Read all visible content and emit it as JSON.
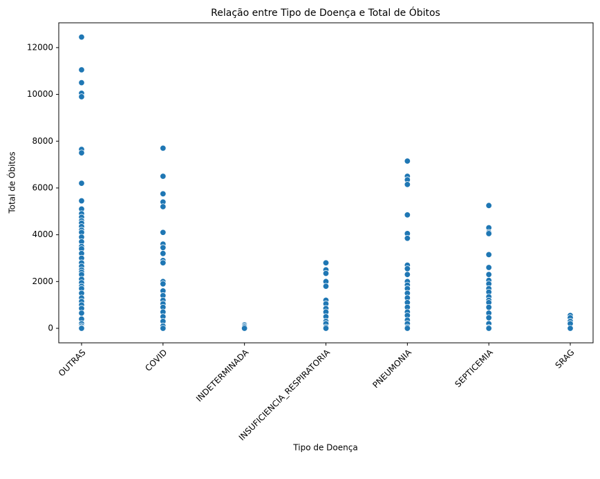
{
  "chart_data": {
    "type": "scatter",
    "title": "Relação entre Tipo de Doença e Total de Óbitos",
    "x_label": "Tipo de Doença",
    "y_label": "Total de Óbitos",
    "color": "#1f77b4",
    "categories": [
      "OUTRAS",
      "COVID",
      "INDETERMINADA",
      "INSUFICIENCIA_RESPIRATORIA",
      "PNEUMONIA",
      "SEPTICEMIA",
      "SRAG"
    ],
    "values": [
      [
        12450,
        11050,
        10500,
        10050,
        9900,
        7650,
        7500,
        6200,
        5450,
        5100,
        4900,
        4750,
        4600,
        4500,
        4350,
        4200,
        4100,
        3900,
        3700,
        3500,
        3400,
        3200,
        3000,
        2800,
        2650,
        2500,
        2400,
        2300,
        2100,
        1950,
        1800,
        1700,
        1500,
        1300,
        1150,
        1000,
        850,
        650,
        400,
        200,
        100,
        30,
        0
      ],
      [
        7700,
        6500,
        5750,
        5400,
        5200,
        4100,
        3600,
        3450,
        3200,
        2900,
        2800,
        2000,
        1900,
        1600,
        1400,
        1200,
        1050,
        900,
        700,
        500,
        300,
        100,
        0
      ],
      [
        150,
        100,
        50,
        0
      ],
      [
        2800,
        2500,
        2350,
        2000,
        1800,
        1200,
        1050,
        850,
        700,
        500,
        300,
        200,
        50,
        0
      ],
      [
        7150,
        6500,
        6350,
        6150,
        4850,
        4050,
        3850,
        2700,
        2550,
        2300,
        2000,
        1850,
        1700,
        1500,
        1300,
        1100,
        900,
        700,
        550,
        350,
        200,
        50,
        0
      ],
      [
        5250,
        4300,
        4100,
        4050,
        3150,
        2600,
        2300,
        2050,
        1900,
        1700,
        1550,
        1350,
        1200,
        1100,
        900,
        650,
        450,
        200,
        30,
        0
      ],
      [
        550,
        450,
        300,
        200,
        0
      ]
    ],
    "ylim": [
      -620,
      13060
    ],
    "yticks": [
      0,
      2000,
      4000,
      6000,
      8000,
      10000,
      12000
    ],
    "grid": false
  }
}
